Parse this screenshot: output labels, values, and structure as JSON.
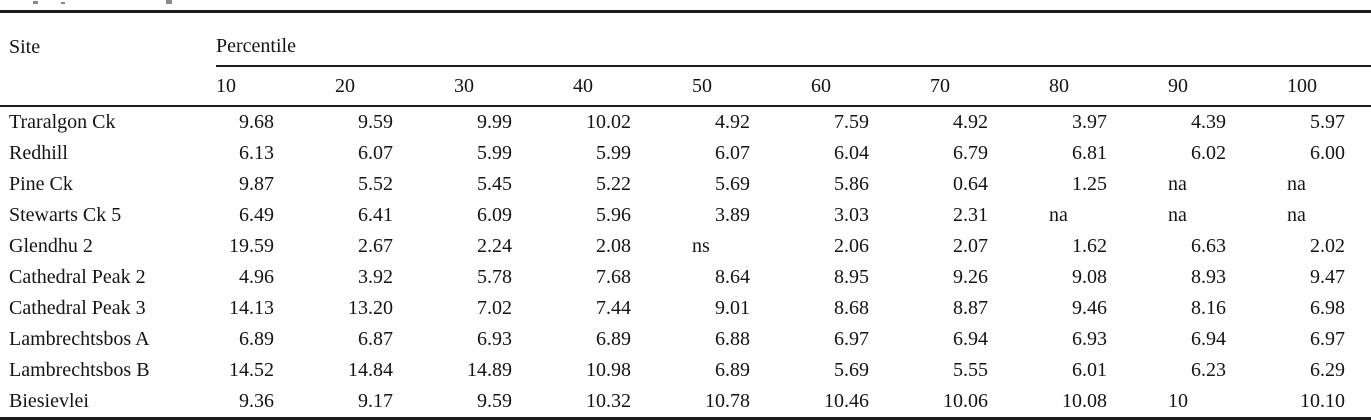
{
  "chart_data": {
    "type": "table",
    "site_col_label": "Site",
    "col_group_label": "Percentile",
    "percentile_columns": [
      "10",
      "20",
      "30",
      "40",
      "50",
      "60",
      "70",
      "80",
      "90",
      "100"
    ],
    "rows": [
      {
        "site": "Traralgon Ck",
        "values": [
          "9.68",
          "9.59",
          "9.99",
          "10.02",
          "4.92",
          "7.59",
          "4.92",
          "3.97",
          "4.39",
          "5.97"
        ]
      },
      {
        "site": "Redhill",
        "values": [
          "6.13",
          "6.07",
          "5.99",
          "5.99",
          "6.07",
          "6.04",
          "6.79",
          "6.81",
          "6.02",
          "6.00"
        ]
      },
      {
        "site": "Pine Ck",
        "values": [
          "9.87",
          "5.52",
          "5.45",
          "5.22",
          "5.69",
          "5.86",
          "0.64",
          "1.25",
          "na",
          "na"
        ]
      },
      {
        "site": "Stewarts Ck 5",
        "values": [
          "6.49",
          "6.41",
          "6.09",
          "5.96",
          "3.89",
          "3.03",
          "2.31",
          "na",
          "na",
          "na"
        ]
      },
      {
        "site": "Glendhu 2",
        "values": [
          "19.59",
          "2.67",
          "2.24",
          "2.08",
          "ns",
          "2.06",
          "2.07",
          "1.62",
          "6.63",
          "2.02"
        ]
      },
      {
        "site": "Cathedral Peak 2",
        "values": [
          "4.96",
          "3.92",
          "5.78",
          "7.68",
          "8.64",
          "8.95",
          "9.26",
          "9.08",
          "8.93",
          "9.47"
        ]
      },
      {
        "site": "Cathedral Peak 3",
        "values": [
          "14.13",
          "13.20",
          "7.02",
          "7.44",
          "9.01",
          "8.68",
          "8.87",
          "9.46",
          "8.16",
          "6.98"
        ]
      },
      {
        "site": "Lambrechtsbos A",
        "values": [
          "6.89",
          "6.87",
          "6.93",
          "6.89",
          "6.88",
          "6.97",
          "6.94",
          "6.93",
          "6.94",
          "6.97"
        ]
      },
      {
        "site": "Lambrechtsbos B",
        "values": [
          "14.52",
          "14.84",
          "14.89",
          "10.98",
          "6.89",
          "5.69",
          "5.55",
          "6.01",
          "6.23",
          "6.29"
        ]
      },
      {
        "site": "Biesievlei",
        "values": [
          "9.36",
          "9.17",
          "9.59",
          "10.32",
          "10.78",
          "10.46",
          "10.06",
          "10.08",
          "10",
          "10.10"
        ]
      }
    ]
  },
  "colors": {
    "text": "#141414",
    "rule": "#1c1c1c",
    "background": "#ffffff"
  }
}
